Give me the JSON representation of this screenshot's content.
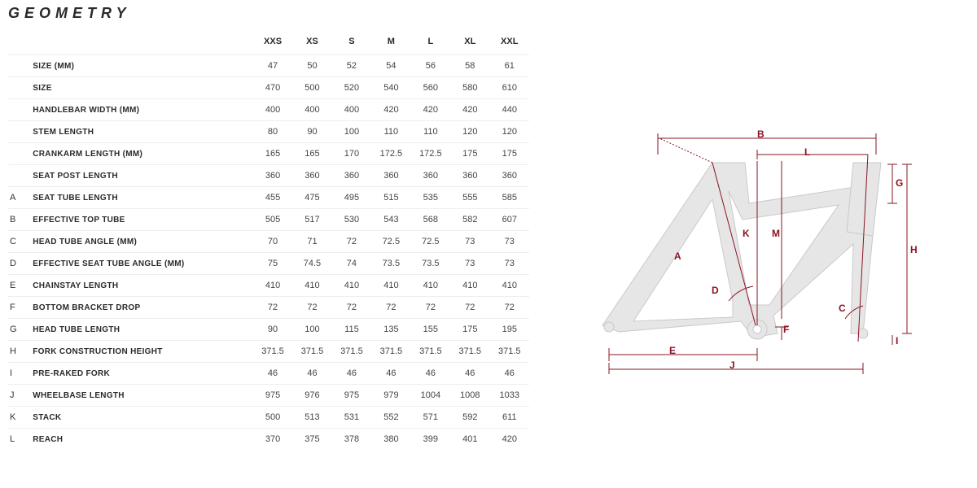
{
  "title": "GEOMETRY",
  "table": {
    "size_headers": [
      "XXS",
      "XS",
      "S",
      "M",
      "L",
      "XL",
      "XXL"
    ],
    "rows": [
      {
        "letter": "",
        "label": "SIZE (MM)",
        "values": [
          "47",
          "50",
          "52",
          "54",
          "56",
          "58",
          "61"
        ]
      },
      {
        "letter": "",
        "label": "SIZE",
        "values": [
          "470",
          "500",
          "520",
          "540",
          "560",
          "580",
          "610"
        ]
      },
      {
        "letter": "",
        "label": "HANDLEBAR WIDTH (MM)",
        "values": [
          "400",
          "400",
          "400",
          "420",
          "420",
          "420",
          "440"
        ]
      },
      {
        "letter": "",
        "label": "STEM LENGTH",
        "values": [
          "80",
          "90",
          "100",
          "110",
          "110",
          "120",
          "120"
        ]
      },
      {
        "letter": "",
        "label": "CRANKARM LENGTH (MM)",
        "values": [
          "165",
          "165",
          "170",
          "172.5",
          "172.5",
          "175",
          "175"
        ]
      },
      {
        "letter": "",
        "label": "SEAT POST LENGTH",
        "values": [
          "360",
          "360",
          "360",
          "360",
          "360",
          "360",
          "360"
        ]
      },
      {
        "letter": "A",
        "label": "SEAT TUBE LENGTH",
        "values": [
          "455",
          "475",
          "495",
          "515",
          "535",
          "555",
          "585"
        ]
      },
      {
        "letter": "B",
        "label": "EFFECTIVE TOP TUBE",
        "values": [
          "505",
          "517",
          "530",
          "543",
          "568",
          "582",
          "607"
        ]
      },
      {
        "letter": "C",
        "label": "HEAD TUBE ANGLE (MM)",
        "values": [
          "70",
          "71",
          "72",
          "72.5",
          "72.5",
          "73",
          "73"
        ]
      },
      {
        "letter": "D",
        "label": "EFFECTIVE SEAT TUBE ANGLE (MM)",
        "values": [
          "75",
          "74.5",
          "74",
          "73.5",
          "73.5",
          "73",
          "73"
        ]
      },
      {
        "letter": "E",
        "label": "CHAINSTAY LENGTH",
        "values": [
          "410",
          "410",
          "410",
          "410",
          "410",
          "410",
          "410"
        ]
      },
      {
        "letter": "F",
        "label": "BOTTOM BRACKET DROP",
        "values": [
          "72",
          "72",
          "72",
          "72",
          "72",
          "72",
          "72"
        ]
      },
      {
        "letter": "G",
        "label": "HEAD TUBE LENGTH",
        "values": [
          "90",
          "100",
          "115",
          "135",
          "155",
          "175",
          "195"
        ]
      },
      {
        "letter": "H",
        "label": "FORK CONSTRUCTION HEIGHT",
        "values": [
          "371.5",
          "371.5",
          "371.5",
          "371.5",
          "371.5",
          "371.5",
          "371.5"
        ]
      },
      {
        "letter": "I",
        "label": "PRE-RAKED FORK",
        "values": [
          "46",
          "46",
          "46",
          "46",
          "46",
          "46",
          "46"
        ]
      },
      {
        "letter": "J",
        "label": "WHEELBASE LENGTH",
        "values": [
          "975",
          "976",
          "975",
          "979",
          "1004",
          "1008",
          "1033"
        ]
      },
      {
        "letter": "K",
        "label": "STACK",
        "values": [
          "500",
          "513",
          "531",
          "552",
          "571",
          "592",
          "611"
        ]
      },
      {
        "letter": "L",
        "label": "REACH",
        "values": [
          "370",
          "375",
          "378",
          "380",
          "399",
          "401",
          "420"
        ]
      }
    ]
  },
  "diagram": {
    "frame_fill": "#e6e6e6",
    "frame_stroke": "#c9c9c9",
    "line_color": "#8a1422",
    "label_color": "#8a1422",
    "labels": {
      "A": "A",
      "B": "B",
      "C": "C",
      "D": "D",
      "E": "E",
      "F": "F",
      "G": "G",
      "H": "H",
      "I": "I",
      "J": "J",
      "K": "K",
      "L": "L",
      "M": "M"
    }
  }
}
